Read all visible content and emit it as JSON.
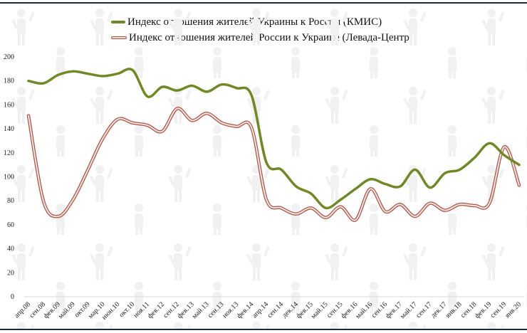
{
  "chart_data": {
    "type": "line",
    "title": "",
    "xlabel": "",
    "ylabel": "",
    "ylim": [
      0,
      200
    ],
    "yticks": [
      0,
      20,
      40,
      60,
      80,
      100,
      120,
      140,
      160,
      180,
      200
    ],
    "grid": false,
    "legend_position": "top",
    "categories": [
      "апр.08",
      "сен.08",
      "фев.09",
      "май.09",
      "окт.09",
      "мар.10",
      "июн.10",
      "окт.10",
      "ноя.11",
      "фев.12",
      "сен.12",
      "фев.13",
      "май.13",
      "сен.13",
      "ноя.13",
      "фев.14",
      "апр.14",
      "сен.14",
      "дек.14",
      "фев.15",
      "май.15",
      "сен.15",
      "фев.16",
      "май.16",
      "сен.16",
      "фев.17",
      "май.17",
      "сен.17",
      "дек.17",
      "янв.18",
      "сен.18",
      "фев.19",
      "сен.19",
      "янв.20"
    ],
    "series": [
      {
        "name": "Индекс отношения жителей Украины к России (КМИС)",
        "color": "#6f8a24",
        "values": [
          180,
          178,
          185,
          188,
          186,
          184,
          186,
          189,
          167,
          175,
          172,
          176,
          171,
          177,
          174,
          168,
          112,
          106,
          92,
          86,
          74,
          81,
          90,
          98,
          94,
          92,
          106,
          91,
          103,
          106,
          116,
          128,
          118,
          110
        ]
      },
      {
        "name": "Индекс отношения жителей России к Украине (Левада-Центр)",
        "color": "#a9564a",
        "fill": "#f6e3dc",
        "values": [
          151,
          80,
          67,
          81,
          106,
          132,
          148,
          145,
          143,
          138,
          157,
          147,
          153,
          145,
          142,
          141,
          81,
          74,
          69,
          74,
          66,
          75,
          64,
          90,
          71,
          77,
          67,
          78,
          72,
          77,
          76,
          78,
          125,
          93
        ]
      }
    ]
  },
  "legend": {
    "items": [
      {
        "label": "Индекс отношения жителей Украины к России (КМИС)"
      },
      {
        "label": "Индекс отношения жителей России к Украине (Левада-Центр)"
      }
    ]
  }
}
